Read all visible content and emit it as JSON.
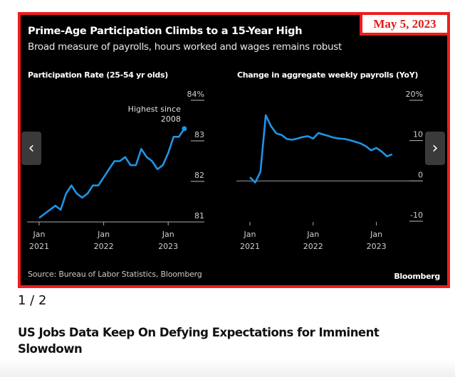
{
  "date_badge": "May 5, 2023",
  "figure": {
    "title": "Prime-Age Participation Climbs to a 15-Year High",
    "subtitle": "Broad measure of payrolls, hours worked and wages remains robust",
    "source": "Source: Bureau of Labor Statistics, Bloomberg",
    "brand": "Bloomberg",
    "line_color": "#1f94e6"
  },
  "carousel": {
    "prev_icon": "chevron-left-icon",
    "next_icon": "chevron-right-icon",
    "prev_glyph": "‹",
    "next_glyph": "›",
    "current": "1",
    "separator": " / ",
    "total": "2"
  },
  "headline": "US Jobs Data Keep On Defying Expectations for Imminent Slowdown",
  "chart_data": [
    {
      "type": "line",
      "title": "Participation Rate (25-54 yr olds)",
      "xlabel": "",
      "ylabel": "",
      "x_ticks": [
        {
          "month_index": 0,
          "label1": "Jan",
          "label2": "2021"
        },
        {
          "month_index": 12,
          "label1": "Jan",
          "label2": "2022"
        },
        {
          "month_index": 24,
          "label1": "Jan",
          "label2": "2023"
        }
      ],
      "y_ticks": [
        {
          "value": 84,
          "label": "84%"
        },
        {
          "value": 83,
          "label": "83"
        },
        {
          "value": 82,
          "label": "82"
        },
        {
          "value": 81,
          "label": "81"
        }
      ],
      "ylim": [
        81,
        84
      ],
      "grid": false,
      "annotation": {
        "line1": "Highest since",
        "line2": "2008",
        "at": "last-point"
      },
      "x": [
        "2021-01",
        "2021-02",
        "2021-03",
        "2021-04",
        "2021-05",
        "2021-06",
        "2021-07",
        "2021-08",
        "2021-09",
        "2021-10",
        "2021-11",
        "2021-12",
        "2022-01",
        "2022-02",
        "2022-03",
        "2022-04",
        "2022-05",
        "2022-06",
        "2022-07",
        "2022-08",
        "2022-09",
        "2022-10",
        "2022-11",
        "2022-12",
        "2023-01",
        "2023-02",
        "2023-03",
        "2023-04"
      ],
      "series": [
        {
          "name": "Participation Rate",
          "values": [
            81.1,
            81.2,
            81.3,
            81.4,
            81.3,
            81.7,
            81.9,
            81.7,
            81.6,
            81.7,
            81.9,
            81.9,
            82.1,
            82.3,
            82.5,
            82.5,
            82.6,
            82.4,
            82.4,
            82.8,
            82.6,
            82.5,
            82.3,
            82.4,
            82.7,
            83.1,
            83.1,
            83.3
          ]
        }
      ]
    },
    {
      "type": "line",
      "title": "Change in aggregate weekly payrolls (YoY)",
      "xlabel": "",
      "ylabel": "",
      "x_ticks": [
        {
          "month_index": 0,
          "label1": "Jan",
          "label2": "2021"
        },
        {
          "month_index": 12,
          "label1": "Jan",
          "label2": "2022"
        },
        {
          "month_index": 24,
          "label1": "Jan",
          "label2": "2023"
        }
      ],
      "y_ticks": [
        {
          "value": 20,
          "label": "20%"
        },
        {
          "value": 10,
          "label": "10"
        },
        {
          "value": 0,
          "label": "0"
        },
        {
          "value": -10,
          "label": "-10"
        }
      ],
      "ylim": [
        -10,
        20
      ],
      "zero_line": true,
      "grid": false,
      "x": [
        "2021-01",
        "2021-02",
        "2021-03",
        "2021-04",
        "2021-05",
        "2021-06",
        "2021-07",
        "2021-08",
        "2021-09",
        "2021-10",
        "2021-11",
        "2021-12",
        "2022-01",
        "2022-02",
        "2022-03",
        "2022-04",
        "2022-05",
        "2022-06",
        "2022-07",
        "2022-08",
        "2022-09",
        "2022-10",
        "2022-11",
        "2022-12",
        "2023-01",
        "2023-02",
        "2023-03",
        "2023-04"
      ],
      "series": [
        {
          "name": "Aggregate weekly payrolls YoY",
          "values": [
            0.9,
            -0.4,
            2.3,
            16.3,
            13.6,
            11.8,
            11.4,
            10.4,
            10.2,
            10.5,
            10.9,
            11.1,
            10.5,
            11.9,
            11.5,
            11.1,
            10.7,
            10.5,
            10.4,
            10.1,
            9.7,
            9.3,
            8.6,
            7.6,
            8.2,
            7.3,
            6.1,
            6.6
          ]
        }
      ]
    }
  ]
}
